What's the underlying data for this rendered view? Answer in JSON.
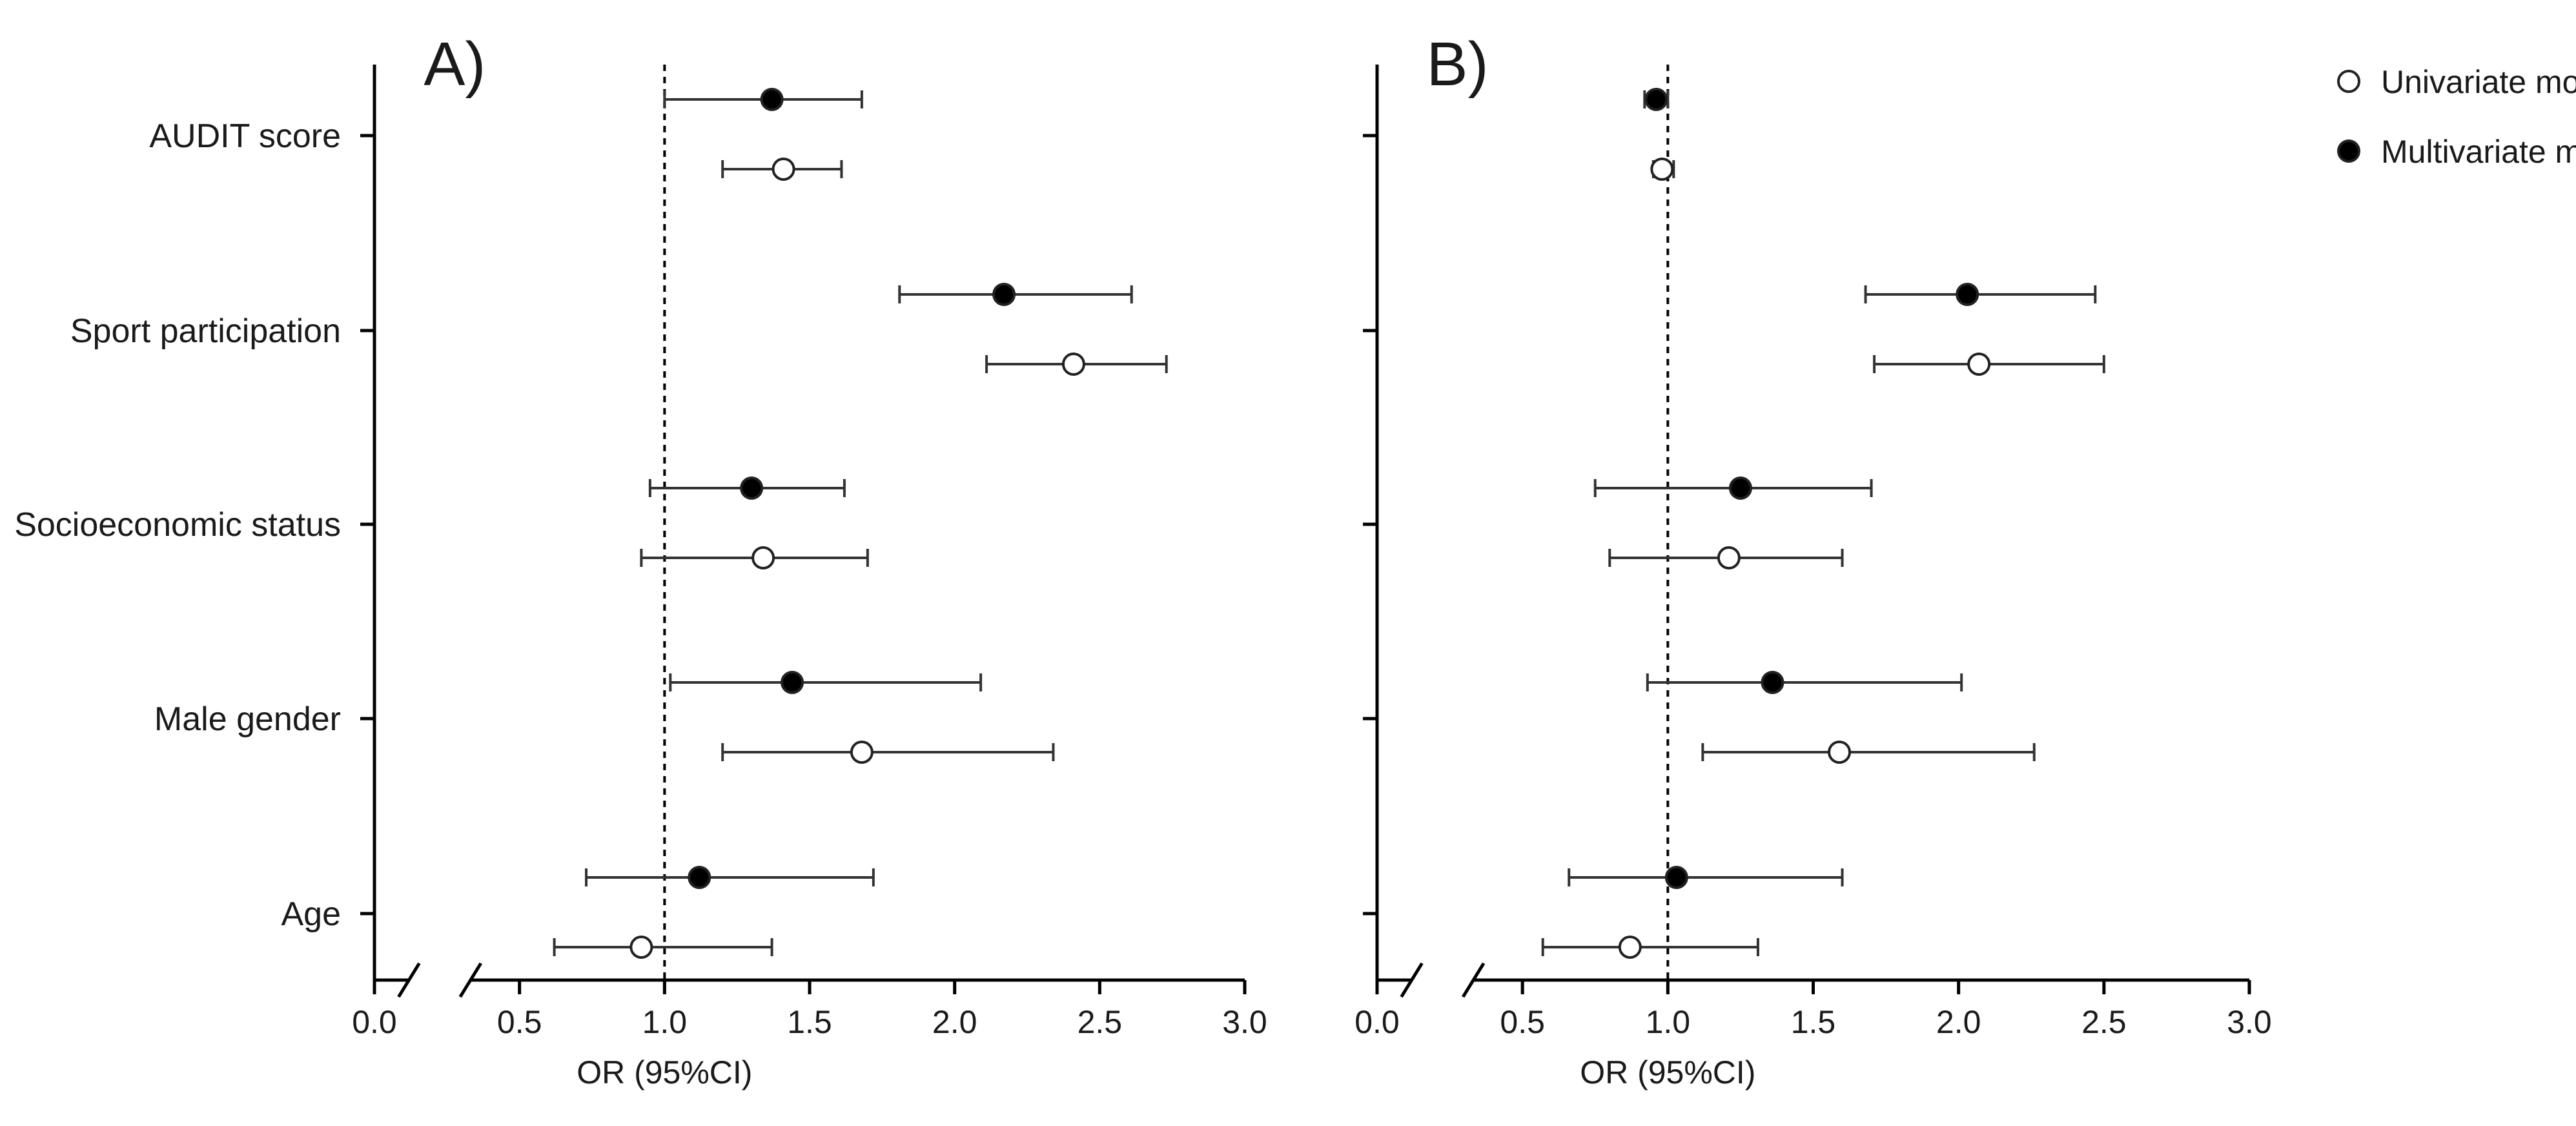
{
  "chart_data": {
    "type": "forest",
    "xlabel": "OR (95%CI)",
    "categories": [
      "AUDIT score",
      "Sport participation",
      "Socioeconomic status",
      "Male gender",
      "Age"
    ],
    "xticks": [
      0.0,
      0.5,
      1.0,
      1.5,
      2.0,
      2.5,
      3.0
    ],
    "xtick_labels": [
      "0.0",
      "0.5",
      "1.0",
      "1.5",
      "2.0",
      "2.5",
      "3.0"
    ],
    "xlim": [
      0.0,
      3.0
    ],
    "axis_break": [
      0.15,
      0.3
    ],
    "reference_line": 1.0,
    "legend": [
      {
        "name": "Univariate model",
        "marker": "open-circle"
      },
      {
        "name": "Multivariate model",
        "marker": "filled-circle"
      }
    ],
    "panels": [
      {
        "label": "A)",
        "series": [
          {
            "name": "Multivariate model",
            "points": [
              {
                "category": "AUDIT score",
                "or": 1.37,
                "lo": 1.0,
                "hi": 1.68
              },
              {
                "category": "Sport participation",
                "or": 2.17,
                "lo": 1.81,
                "hi": 2.61
              },
              {
                "category": "Socioeconomic status",
                "or": 1.3,
                "lo": 0.95,
                "hi": 1.62
              },
              {
                "category": "Male gender",
                "or": 1.44,
                "lo": 1.02,
                "hi": 2.09
              },
              {
                "category": "Age",
                "or": 1.12,
                "lo": 0.73,
                "hi": 1.72
              }
            ]
          },
          {
            "name": "Univariate model",
            "points": [
              {
                "category": "AUDIT score",
                "or": 1.41,
                "lo": 1.2,
                "hi": 1.61
              },
              {
                "category": "Sport participation",
                "or": 2.41,
                "lo": 2.11,
                "hi": 2.73
              },
              {
                "category": "Socioeconomic status",
                "or": 1.34,
                "lo": 0.92,
                "hi": 1.7
              },
              {
                "category": "Male gender",
                "or": 1.68,
                "lo": 1.2,
                "hi": 2.34
              },
              {
                "category": "Age",
                "or": 0.92,
                "lo": 0.62,
                "hi": 1.37
              }
            ]
          }
        ]
      },
      {
        "label": "B)",
        "series": [
          {
            "name": "Multivariate model",
            "points": [
              {
                "category": "AUDIT score",
                "or": 0.96,
                "lo": 0.92,
                "hi": 1.0
              },
              {
                "category": "Sport participation",
                "or": 2.03,
                "lo": 1.68,
                "hi": 2.47
              },
              {
                "category": "Socioeconomic status",
                "or": 1.25,
                "lo": 0.75,
                "hi": 1.7
              },
              {
                "category": "Male gender",
                "or": 1.36,
                "lo": 0.93,
                "hi": 2.01
              },
              {
                "category": "Age",
                "or": 1.03,
                "lo": 0.66,
                "hi": 1.6
              }
            ]
          },
          {
            "name": "Univariate model",
            "points": [
              {
                "category": "AUDIT score",
                "or": 0.98,
                "lo": 0.95,
                "hi": 1.02
              },
              {
                "category": "Sport participation",
                "or": 2.07,
                "lo": 1.71,
                "hi": 2.5
              },
              {
                "category": "Socioeconomic status",
                "or": 1.21,
                "lo": 0.8,
                "hi": 1.6
              },
              {
                "category": "Male gender",
                "or": 1.59,
                "lo": 1.12,
                "hi": 2.26
              },
              {
                "category": "Age",
                "or": 0.87,
                "lo": 0.57,
                "hi": 1.31
              }
            ]
          }
        ]
      }
    ]
  }
}
